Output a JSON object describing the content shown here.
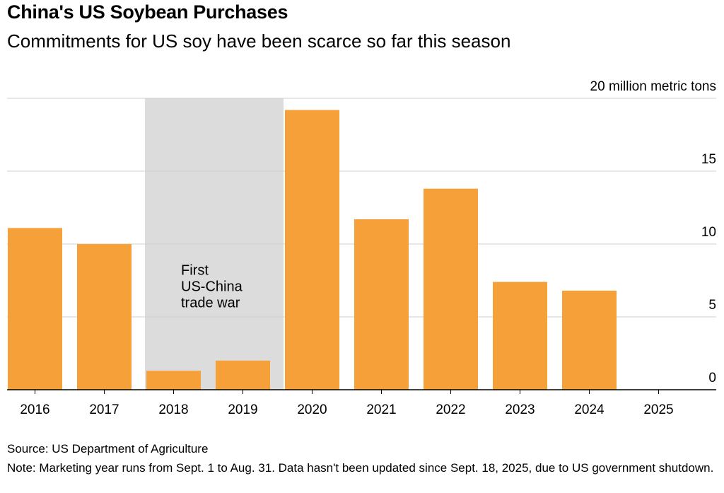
{
  "header": {
    "title": "China's US Soybean Purchases",
    "subtitle": "Commitments for US soy have been scarce so far this season"
  },
  "footer": {
    "source": "Source: US Department of Agriculture",
    "note": "Note: Marketing year runs from Sept. 1 to Aug. 31. Data hasn't been updated since Sept. 18, 2025, due to US government shutdown."
  },
  "chart_data": {
    "type": "bar",
    "title": "China's US Soybean Purchases",
    "subtitle": "Commitments for US soy have been scarce so far this season",
    "categories": [
      "2016",
      "2017",
      "2018",
      "2019",
      "2020",
      "2021",
      "2022",
      "2023",
      "2024",
      "2025"
    ],
    "values": [
      11.1,
      10.0,
      1.3,
      2.0,
      19.2,
      11.7,
      13.8,
      7.4,
      6.8,
      0
    ],
    "ylim": [
      0,
      20
    ],
    "yticks": [
      0,
      5,
      10,
      15,
      20
    ],
    "ytick_labels": [
      "0",
      "5",
      "10",
      "15",
      "20 million metric tons"
    ],
    "ylabel": "million metric tons",
    "xlabel": "",
    "bar_color": "#f5a038",
    "annotation": {
      "label_lines": [
        "First",
        "US-China",
        "trade war"
      ],
      "span": [
        "2018",
        "2019"
      ],
      "color": "#dcdcdc"
    }
  }
}
